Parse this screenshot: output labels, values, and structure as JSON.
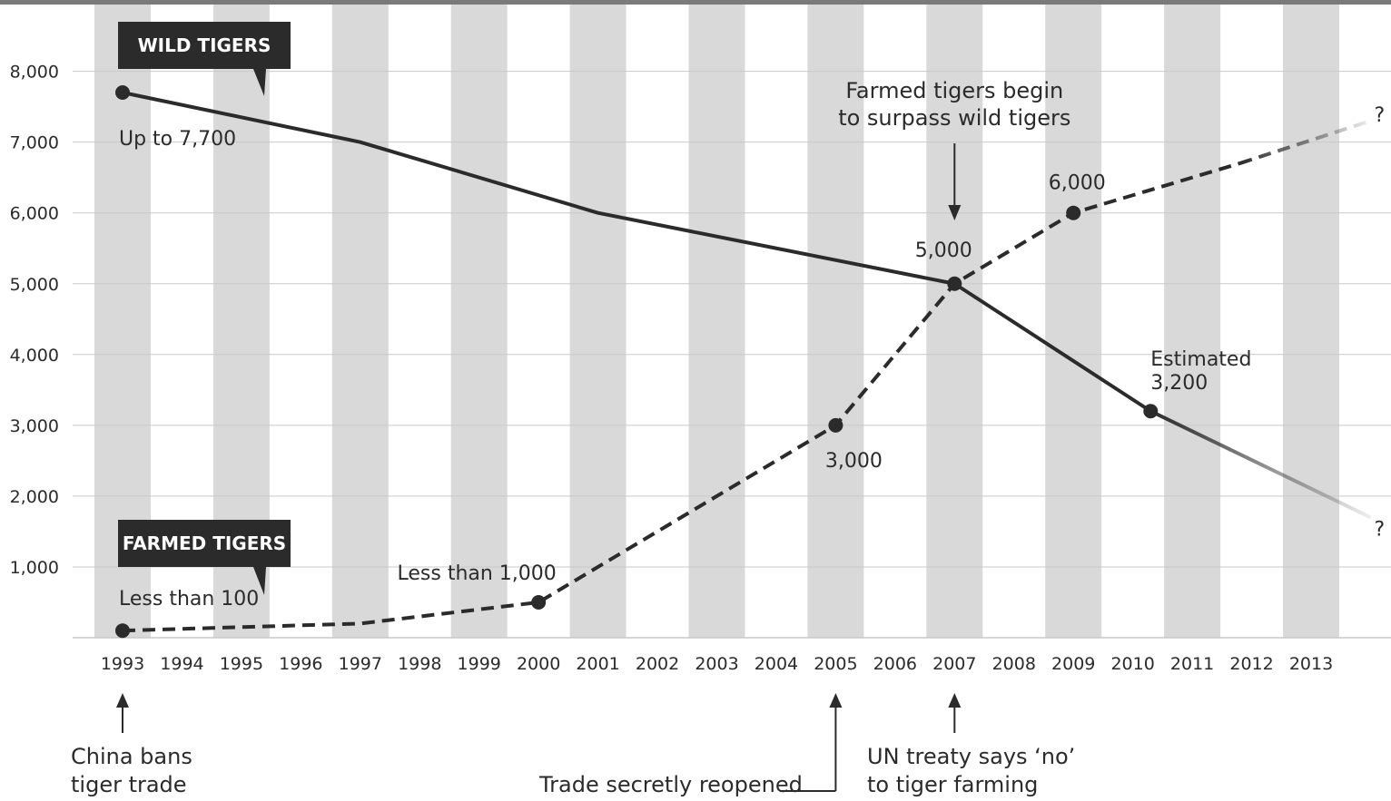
{
  "chart_data": {
    "type": "line",
    "x": [
      1993,
      1994,
      1995,
      1996,
      1997,
      1998,
      1999,
      2000,
      2001,
      2002,
      2003,
      2004,
      2005,
      2006,
      2007,
      2008,
      2009,
      2010,
      2011,
      2012,
      2013
    ],
    "xlim": [
      1993,
      2013
    ],
    "ylim": [
      0,
      8000
    ],
    "y_ticks": [
      "1,000",
      "2,000",
      "3,000",
      "4,000",
      "5,000",
      "6,000",
      "7,000",
      "8,000"
    ],
    "grid": true,
    "series": [
      {
        "name": "WILD TIGERS",
        "style": "solid",
        "points": [
          {
            "x": 1993,
            "y": 7700
          },
          {
            "x": 1997,
            "y": 7000
          },
          {
            "x": 2001,
            "y": 6000
          },
          {
            "x": 2007,
            "y": 5000
          },
          {
            "x": 2010.3,
            "y": 3200
          }
        ],
        "projection": [
          {
            "x": 2010.3,
            "y": 3200
          },
          {
            "x": 2014,
            "y": 1700
          }
        ],
        "markers": [
          {
            "x": 1993,
            "y": 7700,
            "label": "Up to 7,700"
          },
          {
            "x": 2007,
            "y": 5000,
            "label": "5,000"
          },
          {
            "x": 2010.3,
            "y": 3200,
            "label": "Estimated\n3,200"
          }
        ],
        "end_label": "?"
      },
      {
        "name": "FARMED TIGERS",
        "style": "dashed",
        "points": [
          {
            "x": 1993,
            "y": 100
          },
          {
            "x": 1997,
            "y": 200
          },
          {
            "x": 2000,
            "y": 500
          },
          {
            "x": 2003,
            "y": 2000
          },
          {
            "x": 2005,
            "y": 3000
          },
          {
            "x": 2007,
            "y": 5000
          },
          {
            "x": 2009,
            "y": 6000
          },
          {
            "x": 2011.8,
            "y": 6700
          }
        ],
        "projection": [
          {
            "x": 2011.8,
            "y": 6700
          },
          {
            "x": 2014,
            "y": 7300
          }
        ],
        "markers": [
          {
            "x": 1993,
            "y": 100,
            "label": "Less than 100"
          },
          {
            "x": 2000,
            "y": 500,
            "label": "Less than 1,000"
          },
          {
            "x": 2005,
            "y": 3000,
            "label": "3,000"
          },
          {
            "x": 2009,
            "y": 6000,
            "label": "6,000"
          }
        ],
        "end_label": "?"
      }
    ],
    "annotations": [
      {
        "text": "Farmed tigers begin\nto surpass wild tigers",
        "x": 2007
      },
      {
        "text": "China bans\ntiger trade",
        "x": 1993
      },
      {
        "text": "Trade secretly reopened",
        "x": 2005
      },
      {
        "text": "UN treaty says ‘no’\nto tiger farming",
        "x": 2007
      }
    ]
  }
}
